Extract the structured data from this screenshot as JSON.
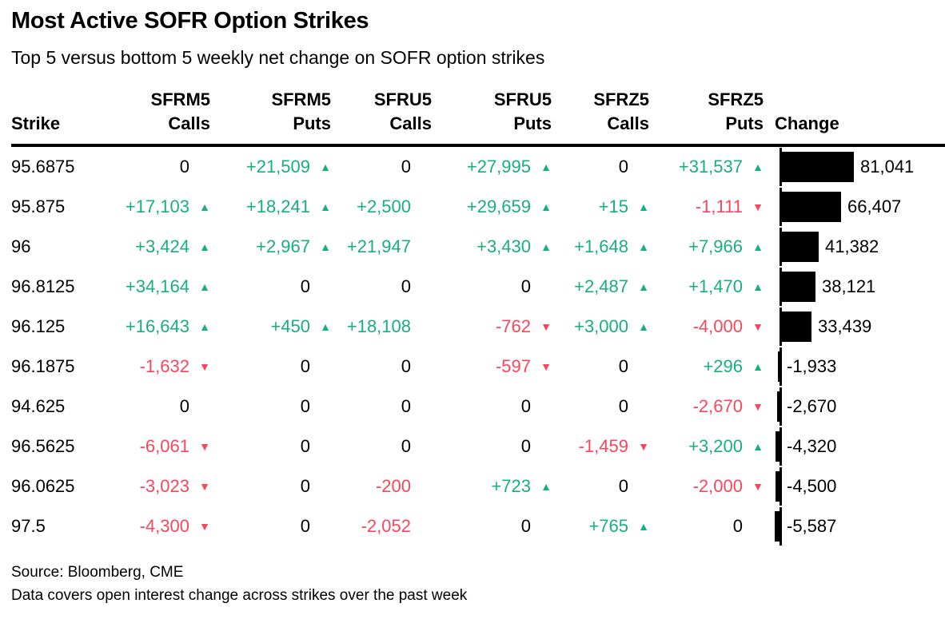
{
  "title": "Most Active SOFR Option Strikes",
  "subtitle": "Top 5 versus bottom 5 weekly net change on SOFR option strikes",
  "source_line1": "Source: Bloomberg, CME",
  "source_line2": "Data covers open interest change across strikes over the past week",
  "colors": {
    "up": "#19af7d",
    "down": "#fa465c",
    "bar": "#000000"
  },
  "icons": {
    "up": "▲",
    "down": "▼"
  },
  "table": {
    "columns": [
      {
        "top": "",
        "bottom": "Strike"
      },
      {
        "top": "SFRM5",
        "bottom": "Calls"
      },
      {
        "top": "SFRM5",
        "bottom": "Puts"
      },
      {
        "top": "SFRU5",
        "bottom": "Calls"
      },
      {
        "top": "SFRU5",
        "bottom": "Puts"
      },
      {
        "top": "SFRZ5",
        "bottom": "Calls"
      },
      {
        "top": "SFRZ5",
        "bottom": "Puts"
      },
      {
        "top": "",
        "bottom": "Change"
      }
    ],
    "rows": [
      {
        "strike": "95.6875",
        "cells": [
          {
            "text": "0",
            "color": "neutral",
            "arrow": false
          },
          {
            "text": "+21,509",
            "color": "up",
            "arrow": true
          },
          {
            "text": "0",
            "color": "neutral",
            "arrow": false
          },
          {
            "text": "+27,995",
            "color": "up",
            "arrow": true
          },
          {
            "text": "0",
            "color": "neutral",
            "arrow": false
          },
          {
            "text": "+31,537",
            "color": "up",
            "arrow": true
          }
        ],
        "change": 81041,
        "change_label": "81,041"
      },
      {
        "strike": "95.875",
        "cells": [
          {
            "text": "+17,103",
            "color": "up",
            "arrow": true
          },
          {
            "text": "+18,241",
            "color": "up",
            "arrow": true
          },
          {
            "text": "+2,500",
            "color": "up",
            "arrow": false
          },
          {
            "text": "+29,659",
            "color": "up",
            "arrow": true
          },
          {
            "text": "+15",
            "color": "up",
            "arrow": true
          },
          {
            "text": "-1,111",
            "color": "down",
            "arrow": true
          }
        ],
        "change": 66407,
        "change_label": "66,407"
      },
      {
        "strike": "96",
        "cells": [
          {
            "text": "+3,424",
            "color": "up",
            "arrow": true
          },
          {
            "text": "+2,967",
            "color": "up",
            "arrow": true
          },
          {
            "text": "+21,947",
            "color": "up",
            "arrow": false
          },
          {
            "text": "+3,430",
            "color": "up",
            "arrow": true
          },
          {
            "text": "+1,648",
            "color": "up",
            "arrow": true
          },
          {
            "text": "+7,966",
            "color": "up",
            "arrow": true
          }
        ],
        "change": 41382,
        "change_label": "41,382"
      },
      {
        "strike": "96.8125",
        "cells": [
          {
            "text": "+34,164",
            "color": "up",
            "arrow": true
          },
          {
            "text": "0",
            "color": "neutral",
            "arrow": false
          },
          {
            "text": "0",
            "color": "neutral",
            "arrow": false
          },
          {
            "text": "0",
            "color": "neutral",
            "arrow": false
          },
          {
            "text": "+2,487",
            "color": "up",
            "arrow": true
          },
          {
            "text": "+1,470",
            "color": "up",
            "arrow": true
          }
        ],
        "change": 38121,
        "change_label": "38,121"
      },
      {
        "strike": "96.125",
        "cells": [
          {
            "text": "+16,643",
            "color": "up",
            "arrow": true
          },
          {
            "text": "+450",
            "color": "up",
            "arrow": true
          },
          {
            "text": "+18,108",
            "color": "up",
            "arrow": false
          },
          {
            "text": "-762",
            "color": "down",
            "arrow": true
          },
          {
            "text": "+3,000",
            "color": "up",
            "arrow": true
          },
          {
            "text": "-4,000",
            "color": "down",
            "arrow": true
          }
        ],
        "change": 33439,
        "change_label": "33,439"
      },
      {
        "strike": "96.1875",
        "cells": [
          {
            "text": "-1,632",
            "color": "down",
            "arrow": true
          },
          {
            "text": "0",
            "color": "neutral",
            "arrow": false
          },
          {
            "text": "0",
            "color": "neutral",
            "arrow": false
          },
          {
            "text": "-597",
            "color": "down",
            "arrow": true
          },
          {
            "text": "0",
            "color": "neutral",
            "arrow": false
          },
          {
            "text": "+296",
            "color": "up",
            "arrow": true
          }
        ],
        "change": -1933,
        "change_label": "-1,933"
      },
      {
        "strike": "94.625",
        "cells": [
          {
            "text": "0",
            "color": "neutral",
            "arrow": false
          },
          {
            "text": "0",
            "color": "neutral",
            "arrow": false
          },
          {
            "text": "0",
            "color": "neutral",
            "arrow": false
          },
          {
            "text": "0",
            "color": "neutral",
            "arrow": false
          },
          {
            "text": "0",
            "color": "neutral",
            "arrow": false
          },
          {
            "text": "-2,670",
            "color": "down",
            "arrow": true
          }
        ],
        "change": -2670,
        "change_label": "-2,670"
      },
      {
        "strike": "96.5625",
        "cells": [
          {
            "text": "-6,061",
            "color": "down",
            "arrow": true
          },
          {
            "text": "0",
            "color": "neutral",
            "arrow": false
          },
          {
            "text": "0",
            "color": "neutral",
            "arrow": false
          },
          {
            "text": "0",
            "color": "neutral",
            "arrow": false
          },
          {
            "text": "-1,459",
            "color": "down",
            "arrow": true
          },
          {
            "text": "+3,200",
            "color": "up",
            "arrow": true
          }
        ],
        "change": -4320,
        "change_label": "-4,320"
      },
      {
        "strike": "96.0625",
        "cells": [
          {
            "text": "-3,023",
            "color": "down",
            "arrow": true
          },
          {
            "text": "0",
            "color": "neutral",
            "arrow": false
          },
          {
            "text": "-200",
            "color": "down",
            "arrow": false
          },
          {
            "text": "+723",
            "color": "up",
            "arrow": true
          },
          {
            "text": "0",
            "color": "neutral",
            "arrow": false
          },
          {
            "text": "-2,000",
            "color": "down",
            "arrow": true
          }
        ],
        "change": -4500,
        "change_label": "-4,500"
      },
      {
        "strike": "97.5",
        "cells": [
          {
            "text": "-4,300",
            "color": "down",
            "arrow": true
          },
          {
            "text": "0",
            "color": "neutral",
            "arrow": false
          },
          {
            "text": "-2,052",
            "color": "down",
            "arrow": false
          },
          {
            "text": "0",
            "color": "neutral",
            "arrow": false
          },
          {
            "text": "+765",
            "color": "up",
            "arrow": true
          },
          {
            "text": "0",
            "color": "neutral",
            "arrow": false
          }
        ],
        "change": -5587,
        "change_label": "-5,587"
      }
    ]
  },
  "chart_data": {
    "type": "table",
    "title": "Most Active SOFR Option Strikes",
    "subtitle": "Top 5 versus bottom 5 weekly net change on SOFR option strikes",
    "columns": [
      "Strike",
      "SFRM5 Calls",
      "SFRM5 Puts",
      "SFRU5 Calls",
      "SFRU5 Puts",
      "SFRZ5 Calls",
      "SFRZ5 Puts",
      "Change"
    ],
    "rows": [
      [
        "95.6875",
        0,
        21509,
        0,
        27995,
        0,
        31537,
        81041
      ],
      [
        "95.875",
        17103,
        18241,
        2500,
        29659,
        15,
        -1111,
        66407
      ],
      [
        "96",
        3424,
        2967,
        21947,
        3430,
        1648,
        7966,
        41382
      ],
      [
        "96.8125",
        34164,
        0,
        0,
        0,
        2487,
        1470,
        38121
      ],
      [
        "96.125",
        16643,
        450,
        18108,
        -762,
        3000,
        -4000,
        33439
      ],
      [
        "96.1875",
        -1632,
        0,
        0,
        -597,
        0,
        296,
        -1933
      ],
      [
        "94.625",
        0,
        0,
        0,
        0,
        0,
        -2670,
        -2670
      ],
      [
        "96.5625",
        -6061,
        0,
        0,
        0,
        -1459,
        3200,
        -4320
      ],
      [
        "96.0625",
        -3023,
        0,
        -200,
        723,
        0,
        -2000,
        -4500
      ],
      [
        "97.5",
        -4300,
        0,
        -2052,
        0,
        765,
        0,
        -5587
      ]
    ],
    "bar_column": "Change",
    "bar_axis_max": 81041,
    "bar_color": "#000000",
    "up_color": "#19af7d",
    "down_color": "#fa465c",
    "source": "Source: Bloomberg, CME",
    "note": "Data covers open interest change across strikes over the past week"
  }
}
